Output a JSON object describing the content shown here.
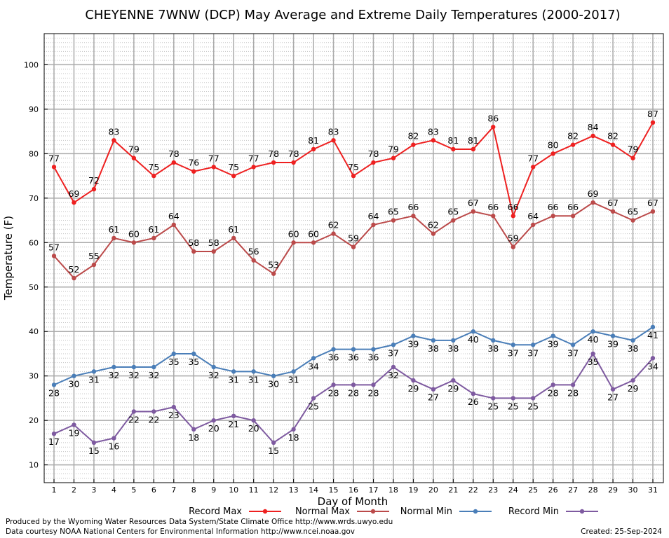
{
  "chart_data": {
    "type": "line",
    "title": "CHEYENNE 7WNW (DCP) May Average and Extreme Daily Temperatures (2000-2017)",
    "xlabel": "Day of Month",
    "ylabel": "Temperature (F)",
    "ylim": [
      6,
      107
    ],
    "yticks": [
      10,
      20,
      30,
      40,
      50,
      60,
      70,
      80,
      90,
      100
    ],
    "grid": true,
    "legend_position": "bottom",
    "x": [
      1,
      2,
      3,
      4,
      5,
      6,
      7,
      8,
      9,
      10,
      11,
      12,
      13,
      14,
      15,
      16,
      17,
      18,
      19,
      20,
      21,
      22,
      23,
      24,
      25,
      26,
      27,
      28,
      29,
      30,
      31
    ],
    "series": [
      {
        "name": "Record Max",
        "color": "#ee2020",
        "label_pos": "above",
        "values": [
          77,
          69,
          72,
          83,
          79,
          75,
          78,
          76,
          77,
          75,
          77,
          78,
          78,
          81,
          83,
          75,
          78,
          79,
          82,
          83,
          81,
          81,
          86,
          66,
          77,
          80,
          82,
          84,
          82,
          79,
          87
        ]
      },
      {
        "name": "Normal Max",
        "color": "#bb4a4a",
        "label_pos": "above",
        "values": [
          57,
          52,
          55,
          61,
          60,
          61,
          64,
          58,
          58,
          61,
          56,
          53,
          60,
          60,
          62,
          59,
          64,
          65,
          66,
          62,
          65,
          67,
          66,
          59,
          64,
          66,
          66,
          69,
          67,
          65,
          67
        ]
      },
      {
        "name": "Normal Min",
        "color": "#4a7eb8",
        "label_pos": "below",
        "values": [
          28,
          30,
          31,
          32,
          32,
          32,
          35,
          35,
          32,
          31,
          31,
          30,
          31,
          34,
          36,
          36,
          36,
          37,
          39,
          38,
          38,
          40,
          38,
          37,
          37,
          39,
          37,
          40,
          39,
          38,
          41
        ]
      },
      {
        "name": "Record Min",
        "color": "#7e5aa0",
        "label_pos": "below",
        "values": [
          17,
          19,
          15,
          16,
          22,
          22,
          23,
          18,
          20,
          21,
          20,
          15,
          18,
          25,
          28,
          28,
          28,
          32,
          29,
          27,
          29,
          26,
          25,
          25,
          25,
          28,
          28,
          35,
          27,
          29,
          34
        ]
      }
    ]
  },
  "footer": {
    "produced": "Produced by the Wyoming Water Resources Data System/State Climate Office http://www.wrds.uwyo.edu",
    "courtesy": "Data courtesy NOAA National Centers for Environmental Information http://www.ncei.noaa.gov",
    "created": "Created: 25-Sep-2024"
  }
}
